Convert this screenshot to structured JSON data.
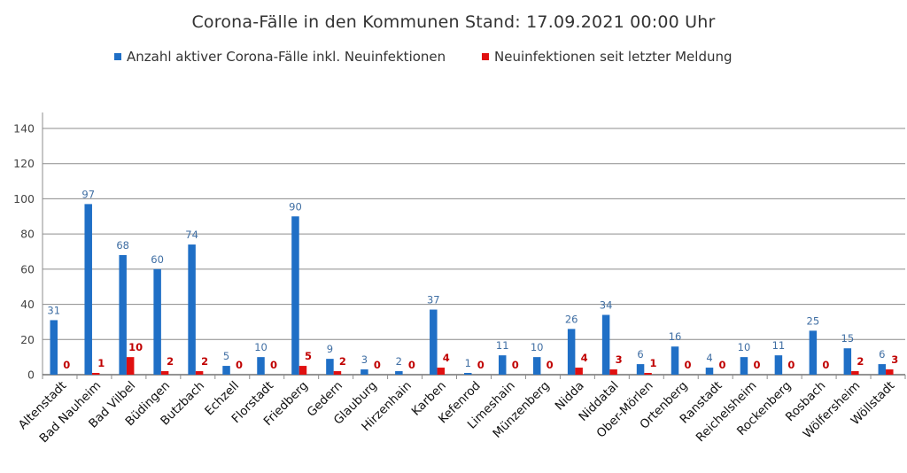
{
  "chart_data": {
    "type": "bar",
    "title": "Corona-Fälle in den Kommunen Stand: 17.09.2021 00:00 Uhr",
    "xlabel": "",
    "ylabel": "",
    "ylim": [
      0,
      140
    ],
    "yticks": [
      0,
      20,
      40,
      60,
      80,
      100,
      120,
      140
    ],
    "grid": true,
    "legend_position": "top",
    "categories": [
      "Altenstadt",
      "Bad Nauheim",
      "Bad Vilbel",
      "Büdingen",
      "Butzbach",
      "Echzell",
      "Florstadt",
      "Friedberg",
      "Gedern",
      "Glauburg",
      "Hirzenhain",
      "Karben",
      "Kefenrod",
      "Limeshain",
      "Münzenberg",
      "Nidda",
      "Niddatal",
      "Ober-Mörlen",
      "Ortenberg",
      "Ranstadt",
      "Reichelsheim",
      "Rockenberg",
      "Rosbach",
      "Wölfersheim",
      "Wöllstadt"
    ],
    "series": [
      {
        "name": "Anzahl aktiver Corona-Fälle inkl. Neuinfektionen",
        "color": "#1f6fc6",
        "values": [
          31,
          97,
          68,
          60,
          74,
          5,
          10,
          90,
          9,
          3,
          2,
          37,
          1,
          11,
          10,
          26,
          34,
          6,
          16,
          4,
          10,
          11,
          25,
          15,
          6
        ]
      },
      {
        "name": "Neuinfektionen seit letzter Meldung",
        "color": "#e01010",
        "values": [
          0,
          1,
          10,
          2,
          2,
          0,
          0,
          5,
          2,
          0,
          0,
          4,
          0,
          0,
          0,
          4,
          3,
          1,
          0,
          0,
          0,
          0,
          0,
          2,
          3
        ]
      }
    ]
  }
}
